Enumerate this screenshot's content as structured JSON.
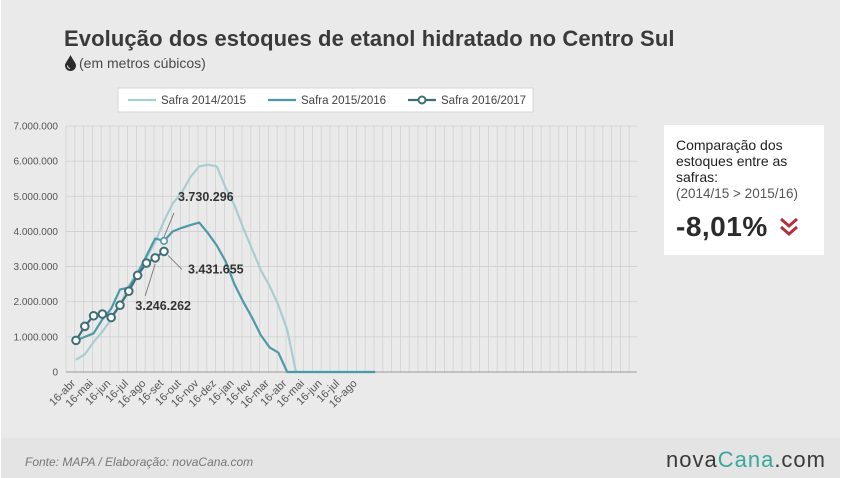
{
  "title": "Evolução dos estoques de etanol hidratado no Centro Sul",
  "subtitle": "(em metros cúbicos)",
  "icons": {
    "unit_icon": "water-drop-icon",
    "trend_icon": "double-chevron-down-icon"
  },
  "colors": {
    "background": "#eaeaea",
    "footer": "#e4e4e4",
    "series_2014": "#a9cdd2",
    "series_2015": "#4d9aa6",
    "series_2016": "#3e6f78",
    "trend_down": "#b0323c"
  },
  "legend": [
    {
      "label": "Safra 2014/2015"
    },
    {
      "label": "Safra 2015/2016"
    },
    {
      "label": "Safra 2016/2017"
    }
  ],
  "comparison": {
    "title": "Comparação dos estoques entre as safras:",
    "subtitle": "(2014/15 > 2015/16)",
    "value": "-8,01%"
  },
  "footer": {
    "source": "Fonte: MAPA  / Elaboração: novaCana.com",
    "logo_main": "nova",
    "logo_accent": "Cana",
    "logo_suffix": ".com"
  },
  "chart_data": {
    "type": "line",
    "title": "Evolução dos estoques de etanol hidratado no Centro Sul",
    "ylabel": "",
    "ylim": [
      0,
      7000000
    ],
    "yticks": [
      "7.000.000",
      "6.000.000",
      "5.000.000",
      "4.000.000",
      "3.000.000",
      "2.000.000",
      "1.000.000",
      "0"
    ],
    "yticks_values": [
      7000000,
      6000000,
      5000000,
      4000000,
      3000000,
      2000000,
      1000000,
      0
    ],
    "x_labels": [
      "16-abr",
      "16-mai",
      "16-jun",
      "16-jul",
      "16-ago",
      "16-set",
      "16-out",
      "16-nov",
      "16-dez",
      "16-jan",
      "16-fev",
      "16-mar",
      "16-abr",
      "16-mai",
      "16-jun",
      "16-jul",
      "16-ago"
    ],
    "periods_per_month": 2,
    "grid": true,
    "legend_position": "top",
    "series": [
      {
        "name": "Safra 2014/2015",
        "values": [
          350000,
          500000,
          850000,
          1150000,
          1500000,
          1900000,
          2450000,
          2850000,
          3250000,
          3700000,
          4300000,
          4800000,
          5100000,
          5550000,
          5850000,
          5900000,
          5850000,
          5250000,
          4750000,
          4100000,
          3500000,
          2900000,
          2450000,
          1900000,
          1200000,
          0,
          0,
          0,
          0,
          0,
          0,
          0,
          0,
          0,
          0
        ]
      },
      {
        "name": "Safra 2015/2016",
        "values": [
          900000,
          1000000,
          1100000,
          1500000,
          1800000,
          2350000,
          2400000,
          2800000,
          3300000,
          3800000,
          3730296,
          4000000,
          4100000,
          4180000,
          4250000,
          3950000,
          3600000,
          3150000,
          2500000,
          2000000,
          1550000,
          1050000,
          700000,
          550000,
          0,
          0,
          0,
          0,
          0,
          0,
          0,
          0,
          0,
          0,
          0
        ]
      },
      {
        "name": "Safra 2016/2017",
        "values": [
          900000,
          1300000,
          1600000,
          1650000,
          1550000,
          1900000,
          2300000,
          2750000,
          3100000,
          3246262,
          3431655
        ]
      }
    ],
    "annotations": [
      {
        "label": "3.730.296",
        "series": "Safra 2015/2016",
        "index": 10
      },
      {
        "label": "3.431.655",
        "series": "Safra 2016/2017",
        "index": 10
      },
      {
        "label": "3.246.262",
        "series": "Safra 2016/2017",
        "index": 9
      }
    ]
  }
}
